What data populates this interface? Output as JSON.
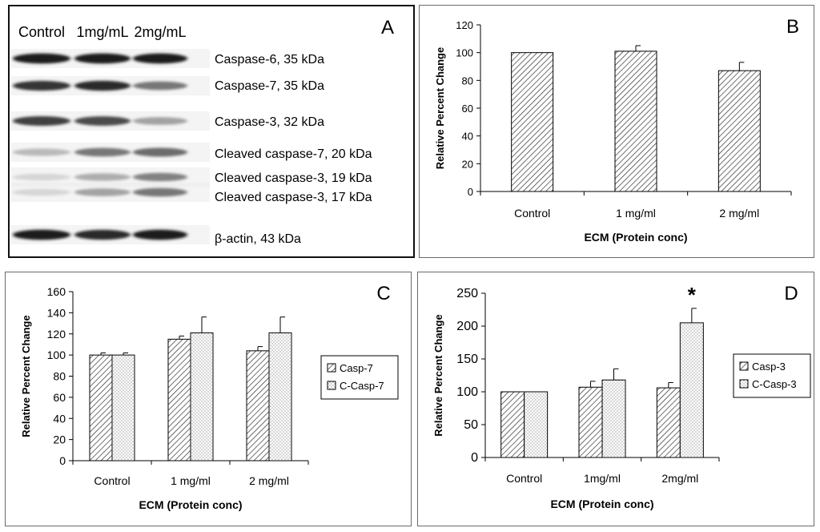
{
  "panels": {
    "A": {
      "letter": "A",
      "lanes": [
        "Control",
        "1mg/mL",
        "2mg/mL"
      ],
      "bands": [
        {
          "label": "Caspase-6, 35 kDa",
          "intensity": [
            0.95,
            0.95,
            0.95
          ]
        },
        {
          "label": "Caspase-7, 35 kDa",
          "intensity": [
            0.85,
            0.9,
            0.55
          ]
        },
        {
          "label": "Caspase-3, 32 kDa",
          "intensity": [
            0.8,
            0.75,
            0.35
          ]
        },
        {
          "label": "Cleaved caspase-7, 20 kDa",
          "intensity": [
            0.25,
            0.55,
            0.6
          ]
        },
        {
          "label": "Cleaved caspase-3, 19 kDa",
          "intensity": [
            0.12,
            0.3,
            0.5
          ]
        },
        {
          "label": "Cleaved caspase-3, 17 kDa",
          "intensity": [
            0.12,
            0.35,
            0.55
          ]
        },
        {
          "label": "β-actin, 43 kDa",
          "intensity": [
            0.95,
            0.9,
            0.95
          ]
        }
      ]
    },
    "B": {
      "letter": "B"
    },
    "C": {
      "letter": "C"
    },
    "D": {
      "letter": "D"
    }
  },
  "chart_data": [
    {
      "panel": "B",
      "type": "bar",
      "categories": [
        "Control",
        "1 mg/ml",
        "2 mg/ml"
      ],
      "series": [
        {
          "name": "",
          "values": [
            100,
            101,
            87
          ],
          "errors": [
            0,
            4,
            6
          ],
          "pattern": "hatch"
        }
      ],
      "title": "",
      "xlabel": "ECM (Protein conc)",
      "ylabel": "Relative Percent Change",
      "ylim": [
        0,
        120
      ],
      "yticks": [
        "0",
        "20",
        "40",
        "60",
        "80",
        "100",
        "120"
      ],
      "legend": null
    },
    {
      "panel": "C",
      "type": "bar",
      "categories": [
        "Control",
        "1 mg/ml",
        "2 mg/ml"
      ],
      "series": [
        {
          "name": "Casp-7",
          "values": [
            100,
            115,
            104
          ],
          "errors": [
            2,
            3,
            4
          ],
          "pattern": "hatch"
        },
        {
          "name": "C-Casp-7",
          "values": [
            100,
            121,
            121
          ],
          "errors": [
            2,
            15,
            15
          ],
          "pattern": "dots"
        }
      ],
      "title": "",
      "xlabel": "ECM (Protein conc)",
      "ylabel": "Relative Percent Change",
      "ylim": [
        0,
        160
      ],
      "yticks": [
        "0",
        "20",
        "40",
        "60",
        "80",
        "100",
        "120",
        "140",
        "160"
      ],
      "legend": "right"
    },
    {
      "panel": "D",
      "type": "bar",
      "categories": [
        "Control",
        "1mg/ml",
        "2mg/ml"
      ],
      "series": [
        {
          "name": "Casp-3",
          "values": [
            100,
            107,
            106
          ],
          "errors": [
            0,
            9,
            8
          ],
          "pattern": "hatch"
        },
        {
          "name": "C-Casp-3",
          "values": [
            100,
            118,
            205
          ],
          "errors": [
            0,
            17,
            22
          ],
          "pattern": "dots"
        }
      ],
      "title": "",
      "xlabel": "ECM (Protein conc)",
      "ylabel": "Relative Percent Change",
      "ylim": [
        0,
        250
      ],
      "yticks": [
        "0",
        "50",
        "100",
        "150",
        "200",
        "250"
      ],
      "legend": "right",
      "annotations": [
        {
          "category": "2mg/ml",
          "series": "C-Casp-3",
          "text": "*"
        }
      ]
    }
  ]
}
